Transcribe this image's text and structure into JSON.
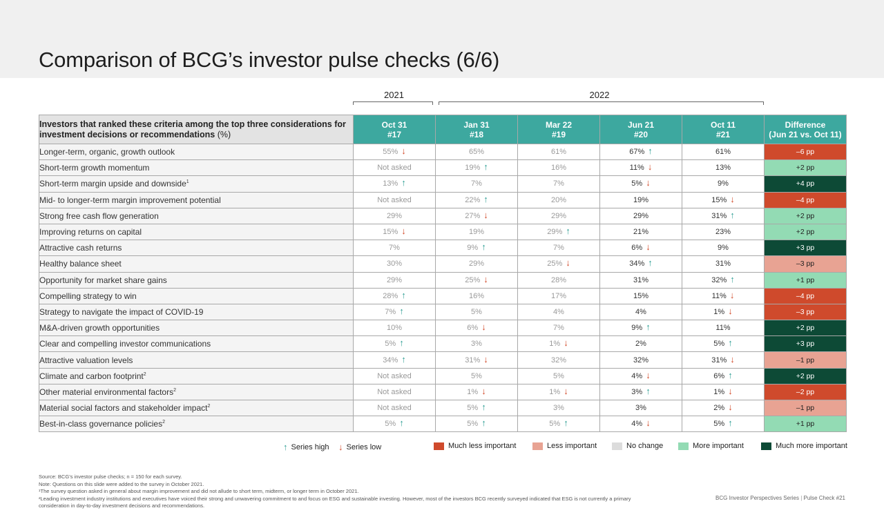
{
  "title": "Comparison of BCG’s investor pulse checks (6/6)",
  "years": [
    "2021",
    "2022"
  ],
  "table": {
    "criteria_header": "Investors that ranked these criteria among the top three considerations for investment decisions or recommendations",
    "criteria_header_unit": "(%)",
    "columns": [
      {
        "date": "Oct 31",
        "number": "#17"
      },
      {
        "date": "Jan 31",
        "number": "#18"
      },
      {
        "date": "Mar 22",
        "number": "#19"
      },
      {
        "date": "Jun 21",
        "number": "#20"
      },
      {
        "date": "Oct 11",
        "number": "#21"
      }
    ],
    "difference_header": {
      "line1": "Difference",
      "line2": "(Jun 21 vs. Oct 11)"
    },
    "rows": [
      {
        "criterion": "Longer-term, organic, growth outlook",
        "note": "",
        "values": [
          {
            "text": "55%",
            "arrow": "down"
          },
          {
            "text": "65%",
            "arrow": ""
          },
          {
            "text": "61%",
            "arrow": ""
          },
          {
            "text": "67%",
            "arrow": "up"
          },
          {
            "text": "61%",
            "arrow": ""
          }
        ],
        "difference": "–6 pp",
        "category": "much-less"
      },
      {
        "criterion": "Short-term growth momentum",
        "note": "",
        "values": [
          {
            "text": "Not asked",
            "arrow": ""
          },
          {
            "text": "19%",
            "arrow": "up"
          },
          {
            "text": "16%",
            "arrow": ""
          },
          {
            "text": "11%",
            "arrow": "down"
          },
          {
            "text": "13%",
            "arrow": ""
          }
        ],
        "difference": "+2 pp",
        "category": "more"
      },
      {
        "criterion": "Short-term margin upside and downside",
        "note": "1",
        "values": [
          {
            "text": "13%",
            "arrow": "up"
          },
          {
            "text": "7%",
            "arrow": ""
          },
          {
            "text": "7%",
            "arrow": ""
          },
          {
            "text": "5%",
            "arrow": "down"
          },
          {
            "text": "9%",
            "arrow": ""
          }
        ],
        "difference": "+4 pp",
        "category": "much-more"
      },
      {
        "criterion": "Mid- to longer-term margin improvement potential",
        "note": "",
        "values": [
          {
            "text": "Not asked",
            "arrow": ""
          },
          {
            "text": "22%",
            "arrow": "up"
          },
          {
            "text": "20%",
            "arrow": ""
          },
          {
            "text": "19%",
            "arrow": ""
          },
          {
            "text": "15%",
            "arrow": "down"
          }
        ],
        "difference": "–4 pp",
        "category": "much-less"
      },
      {
        "criterion": "Strong free cash flow generation",
        "note": "",
        "values": [
          {
            "text": "29%",
            "arrow": ""
          },
          {
            "text": "27%",
            "arrow": "down"
          },
          {
            "text": "29%",
            "arrow": ""
          },
          {
            "text": "29%",
            "arrow": ""
          },
          {
            "text": "31%",
            "arrow": "up"
          }
        ],
        "difference": "+2 pp",
        "category": "more"
      },
      {
        "criterion": "Improving returns on capital",
        "note": "",
        "values": [
          {
            "text": "15%",
            "arrow": "down"
          },
          {
            "text": "19%",
            "arrow": ""
          },
          {
            "text": "29%",
            "arrow": "up"
          },
          {
            "text": "21%",
            "arrow": ""
          },
          {
            "text": "23%",
            "arrow": ""
          }
        ],
        "difference": "+2 pp",
        "category": "more"
      },
      {
        "criterion": "Attractive cash returns",
        "note": "",
        "values": [
          {
            "text": "7%",
            "arrow": ""
          },
          {
            "text": "9%",
            "arrow": "up"
          },
          {
            "text": "7%",
            "arrow": ""
          },
          {
            "text": "6%",
            "arrow": "down"
          },
          {
            "text": "9%",
            "arrow": ""
          }
        ],
        "difference": "+3 pp",
        "category": "much-more"
      },
      {
        "criterion": "Healthy balance sheet",
        "note": "",
        "values": [
          {
            "text": "30%",
            "arrow": ""
          },
          {
            "text": "29%",
            "arrow": ""
          },
          {
            "text": "25%",
            "arrow": "down"
          },
          {
            "text": "34%",
            "arrow": "up"
          },
          {
            "text": "31%",
            "arrow": ""
          }
        ],
        "difference": "–3 pp",
        "category": "less"
      },
      {
        "criterion": "Opportunity for market share gains",
        "note": "",
        "values": [
          {
            "text": "29%",
            "arrow": ""
          },
          {
            "text": "25%",
            "arrow": "down"
          },
          {
            "text": "28%",
            "arrow": ""
          },
          {
            "text": "31%",
            "arrow": ""
          },
          {
            "text": "32%",
            "arrow": "up"
          }
        ],
        "difference": "+1 pp",
        "category": "more"
      },
      {
        "criterion": "Compelling strategy to win",
        "note": "",
        "values": [
          {
            "text": "28%",
            "arrow": "up"
          },
          {
            "text": "16%",
            "arrow": ""
          },
          {
            "text": "17%",
            "arrow": ""
          },
          {
            "text": "15%",
            "arrow": ""
          },
          {
            "text": "11%",
            "arrow": "down"
          }
        ],
        "difference": "–4 pp",
        "category": "much-less"
      },
      {
        "criterion": "Strategy to navigate the impact of COVID-19",
        "note": "",
        "values": [
          {
            "text": "7%",
            "arrow": "up"
          },
          {
            "text": "5%",
            "arrow": ""
          },
          {
            "text": "4%",
            "arrow": ""
          },
          {
            "text": "4%",
            "arrow": ""
          },
          {
            "text": "1%",
            "arrow": "down"
          }
        ],
        "difference": "–3 pp",
        "category": "much-less"
      },
      {
        "criterion": "M&A-driven growth opportunities",
        "note": "",
        "values": [
          {
            "text": "10%",
            "arrow": ""
          },
          {
            "text": "6%",
            "arrow": "down"
          },
          {
            "text": "7%",
            "arrow": ""
          },
          {
            "text": "9%",
            "arrow": "up"
          },
          {
            "text": "11%",
            "arrow": ""
          }
        ],
        "difference": "+2 pp",
        "category": "much-more"
      },
      {
        "criterion": "Clear and compelling investor communications",
        "note": "",
        "values": [
          {
            "text": "5%",
            "arrow": "up"
          },
          {
            "text": "3%",
            "arrow": ""
          },
          {
            "text": "1%",
            "arrow": "down"
          },
          {
            "text": "2%",
            "arrow": ""
          },
          {
            "text": "5%",
            "arrow": "up"
          }
        ],
        "difference": "+3 pp",
        "category": "much-more"
      },
      {
        "criterion": "Attractive valuation levels",
        "note": "",
        "values": [
          {
            "text": "34%",
            "arrow": "up"
          },
          {
            "text": "31%",
            "arrow": "down"
          },
          {
            "text": "32%",
            "arrow": ""
          },
          {
            "text": "32%",
            "arrow": ""
          },
          {
            "text": "31%",
            "arrow": "down"
          }
        ],
        "difference": "–1 pp",
        "category": "less"
      },
      {
        "criterion": "Climate and carbon footprint",
        "note": "2",
        "values": [
          {
            "text": "Not asked",
            "arrow": ""
          },
          {
            "text": "5%",
            "arrow": ""
          },
          {
            "text": "5%",
            "arrow": ""
          },
          {
            "text": "4%",
            "arrow": "down"
          },
          {
            "text": "6%",
            "arrow": "up"
          }
        ],
        "difference": "+2 pp",
        "category": "much-more"
      },
      {
        "criterion": "Other material environmental factors",
        "note": "2",
        "values": [
          {
            "text": "Not asked",
            "arrow": ""
          },
          {
            "text": "1%",
            "arrow": "down"
          },
          {
            "text": "1%",
            "arrow": "down"
          },
          {
            "text": "3%",
            "arrow": "up"
          },
          {
            "text": "1%",
            "arrow": "down"
          }
        ],
        "difference": "–2 pp",
        "category": "much-less"
      },
      {
        "criterion": "Material social factors and stakeholder impact",
        "note": "2",
        "values": [
          {
            "text": "Not asked",
            "arrow": ""
          },
          {
            "text": "5%",
            "arrow": "up"
          },
          {
            "text": "3%",
            "arrow": ""
          },
          {
            "text": "3%",
            "arrow": ""
          },
          {
            "text": "2%",
            "arrow": "down"
          }
        ],
        "difference": "–1 pp",
        "category": "less"
      },
      {
        "criterion": "Best-in-class governance policies",
        "note": "2",
        "values": [
          {
            "text": "5%",
            "arrow": "up"
          },
          {
            "text": "5%",
            "arrow": "up"
          },
          {
            "text": "5%",
            "arrow": "up"
          },
          {
            "text": "4%",
            "arrow": "down"
          },
          {
            "text": "5%",
            "arrow": "up"
          }
        ],
        "difference": "+1 pp",
        "category": "more"
      }
    ]
  },
  "categories": {
    "much-less": {
      "label": "Much less important",
      "color": "#cf4a2c",
      "text_color": "#ffffff"
    },
    "less": {
      "label": "Less important",
      "color": "#e8a393",
      "text_color": "#222222"
    },
    "no-change": {
      "label": "No change",
      "color": "#dcdcdc",
      "text_color": "#222222"
    },
    "more": {
      "label": "More important",
      "color": "#93dbb4",
      "text_color": "#222222"
    },
    "much-more": {
      "label": "Much more important",
      "color": "#0d4a36",
      "text_color": "#ffffff"
    }
  },
  "legend": {
    "series_high": "Series high",
    "series_low": "Series low"
  },
  "arrows": {
    "up": "↑",
    "down": "↓"
  },
  "footnotes": [
    "Source: BCG’s investor pulse checks; n = 150 for each survey.",
    "Note: Questions on this slide were added to the survey in October 2021.",
    "¹The survey question asked in general about margin improvement and did not allude to short term, midterm, or longer term in October 2021.",
    "²Leading investment industry institutions and executives have voiced their strong and unwavering commitment to and focus on ESG and sustainable investing. However, most of the investors BCG recently surveyed indicated that ESG is not currently a primary consideration in day-to-day investment decisions and recommendations."
  ],
  "footer": {
    "series": "BCG Investor Perspectives Series",
    "separator": "|",
    "check": "Pulse Check #21"
  },
  "colors": {
    "header_teal": "#3da89f",
    "up_arrow": "#2f9f94",
    "down_arrow": "#d24a2a",
    "top_band": "#f0f0f0"
  }
}
